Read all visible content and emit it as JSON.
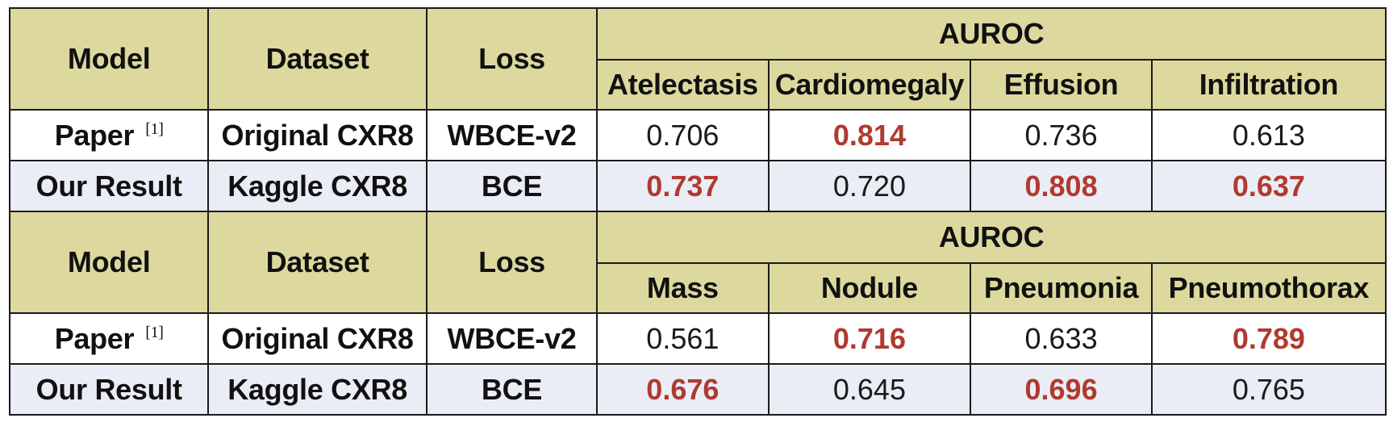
{
  "chart_data": {
    "type": "table",
    "header": {
      "model": "Model",
      "dataset": "Dataset",
      "loss": "Loss",
      "group": "AUROC"
    },
    "blocks": [
      {
        "diseases": [
          "Atelectasis",
          "Cardiomegaly",
          "Effusion",
          "Infiltration"
        ],
        "rows": [
          {
            "model": "Paper",
            "ref": "[1]",
            "dataset": "Original CXR8",
            "loss": "WBCE-v2",
            "values": [
              "0.706",
              "0.814",
              "0.736",
              "0.613"
            ],
            "best": [
              false,
              true,
              false,
              false
            ]
          },
          {
            "model": "Our Result",
            "ref": "",
            "dataset": "Kaggle CXR8",
            "loss": "BCE",
            "values": [
              "0.737",
              "0.720",
              "0.808",
              "0.637"
            ],
            "best": [
              true,
              false,
              true,
              true
            ]
          }
        ]
      },
      {
        "diseases": [
          "Mass",
          "Nodule",
          "Pneumonia",
          "Pneumothorax"
        ],
        "rows": [
          {
            "model": "Paper",
            "ref": "[1]",
            "dataset": "Original CXR8",
            "loss": "WBCE-v2",
            "values": [
              "0.561",
              "0.716",
              "0.633",
              "0.789"
            ],
            "best": [
              false,
              true,
              false,
              true
            ]
          },
          {
            "model": "Our Result",
            "ref": "",
            "dataset": "Kaggle CXR8",
            "loss": "BCE",
            "values": [
              "0.676",
              "0.645",
              "0.696",
              "0.765"
            ],
            "best": [
              true,
              false,
              true,
              false
            ]
          }
        ]
      }
    ]
  },
  "colors": {
    "header_bg": "#ddd99e",
    "row_alt_bg": "#eaedf6",
    "best_value": "#b03a2e",
    "border": "#1a1a1a"
  }
}
